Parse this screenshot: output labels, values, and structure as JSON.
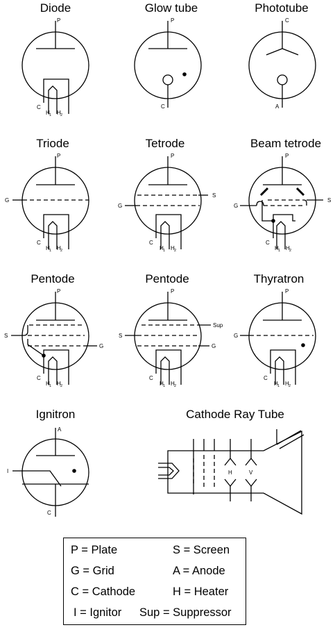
{
  "titles": {
    "diode": "Diode",
    "glow_tube": "Glow tube",
    "phototube": "Phototube",
    "triode": "Triode",
    "tetrode": "Tetrode",
    "beam_tetrode": "Beam tetrode",
    "pentode_1": "Pentode",
    "pentode_2": "Pentode",
    "thyratron": "Thyratron",
    "ignitron": "Ignitron",
    "crt": "Cathode Ray Tube"
  },
  "pins": {
    "p": "P",
    "c": "C",
    "a": "A",
    "g": "G",
    "s": "S",
    "i": "I",
    "h": "H",
    "h1_sub": "1",
    "h2_sub": "2",
    "sup": "Sup",
    "crt_h": "H",
    "crt_v": "V"
  },
  "legend": [
    {
      "text": "P = Plate"
    },
    {
      "text": "S = Screen"
    },
    {
      "text": "G = Grid"
    },
    {
      "text": "A = Anode"
    },
    {
      "text": "C = Cathode"
    },
    {
      "text": "H = Heater"
    },
    {
      "text": "I = Ignitor"
    },
    {
      "text": "Sup = Suppressor"
    }
  ]
}
